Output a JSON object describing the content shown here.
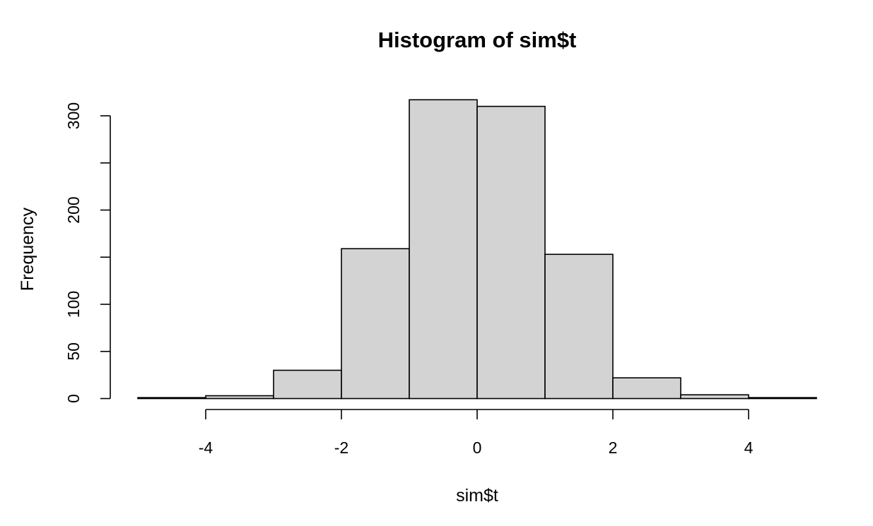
{
  "chart_data": {
    "type": "bar",
    "title": "Histogram of sim$t",
    "xlabel": "sim$t",
    "ylabel": "Frequency",
    "bins": [
      {
        "from": -5,
        "to": -4,
        "count": 1
      },
      {
        "from": -4,
        "to": -3,
        "count": 3
      },
      {
        "from": -3,
        "to": -2,
        "count": 30
      },
      {
        "from": -2,
        "to": -1,
        "count": 159
      },
      {
        "from": -1,
        "to": 0,
        "count": 317
      },
      {
        "from": 0,
        "to": 1,
        "count": 310
      },
      {
        "from": 1,
        "to": 2,
        "count": 153
      },
      {
        "from": 2,
        "to": 3,
        "count": 22
      },
      {
        "from": 3,
        "to": 4,
        "count": 4
      },
      {
        "from": 4,
        "to": 5,
        "count": 1
      }
    ],
    "xlim": [
      -5,
      5
    ],
    "ylim": [
      0,
      317
    ],
    "x_ticks": [
      -4,
      -2,
      0,
      2,
      4
    ],
    "y_ticks": [
      0,
      50,
      100,
      150,
      200,
      250,
      300
    ],
    "y_tick_labels": [
      "0",
      "50",
      "100",
      "",
      "200",
      "",
      "300"
    ],
    "bar_color": "#d3d3d3",
    "grid": false
  }
}
